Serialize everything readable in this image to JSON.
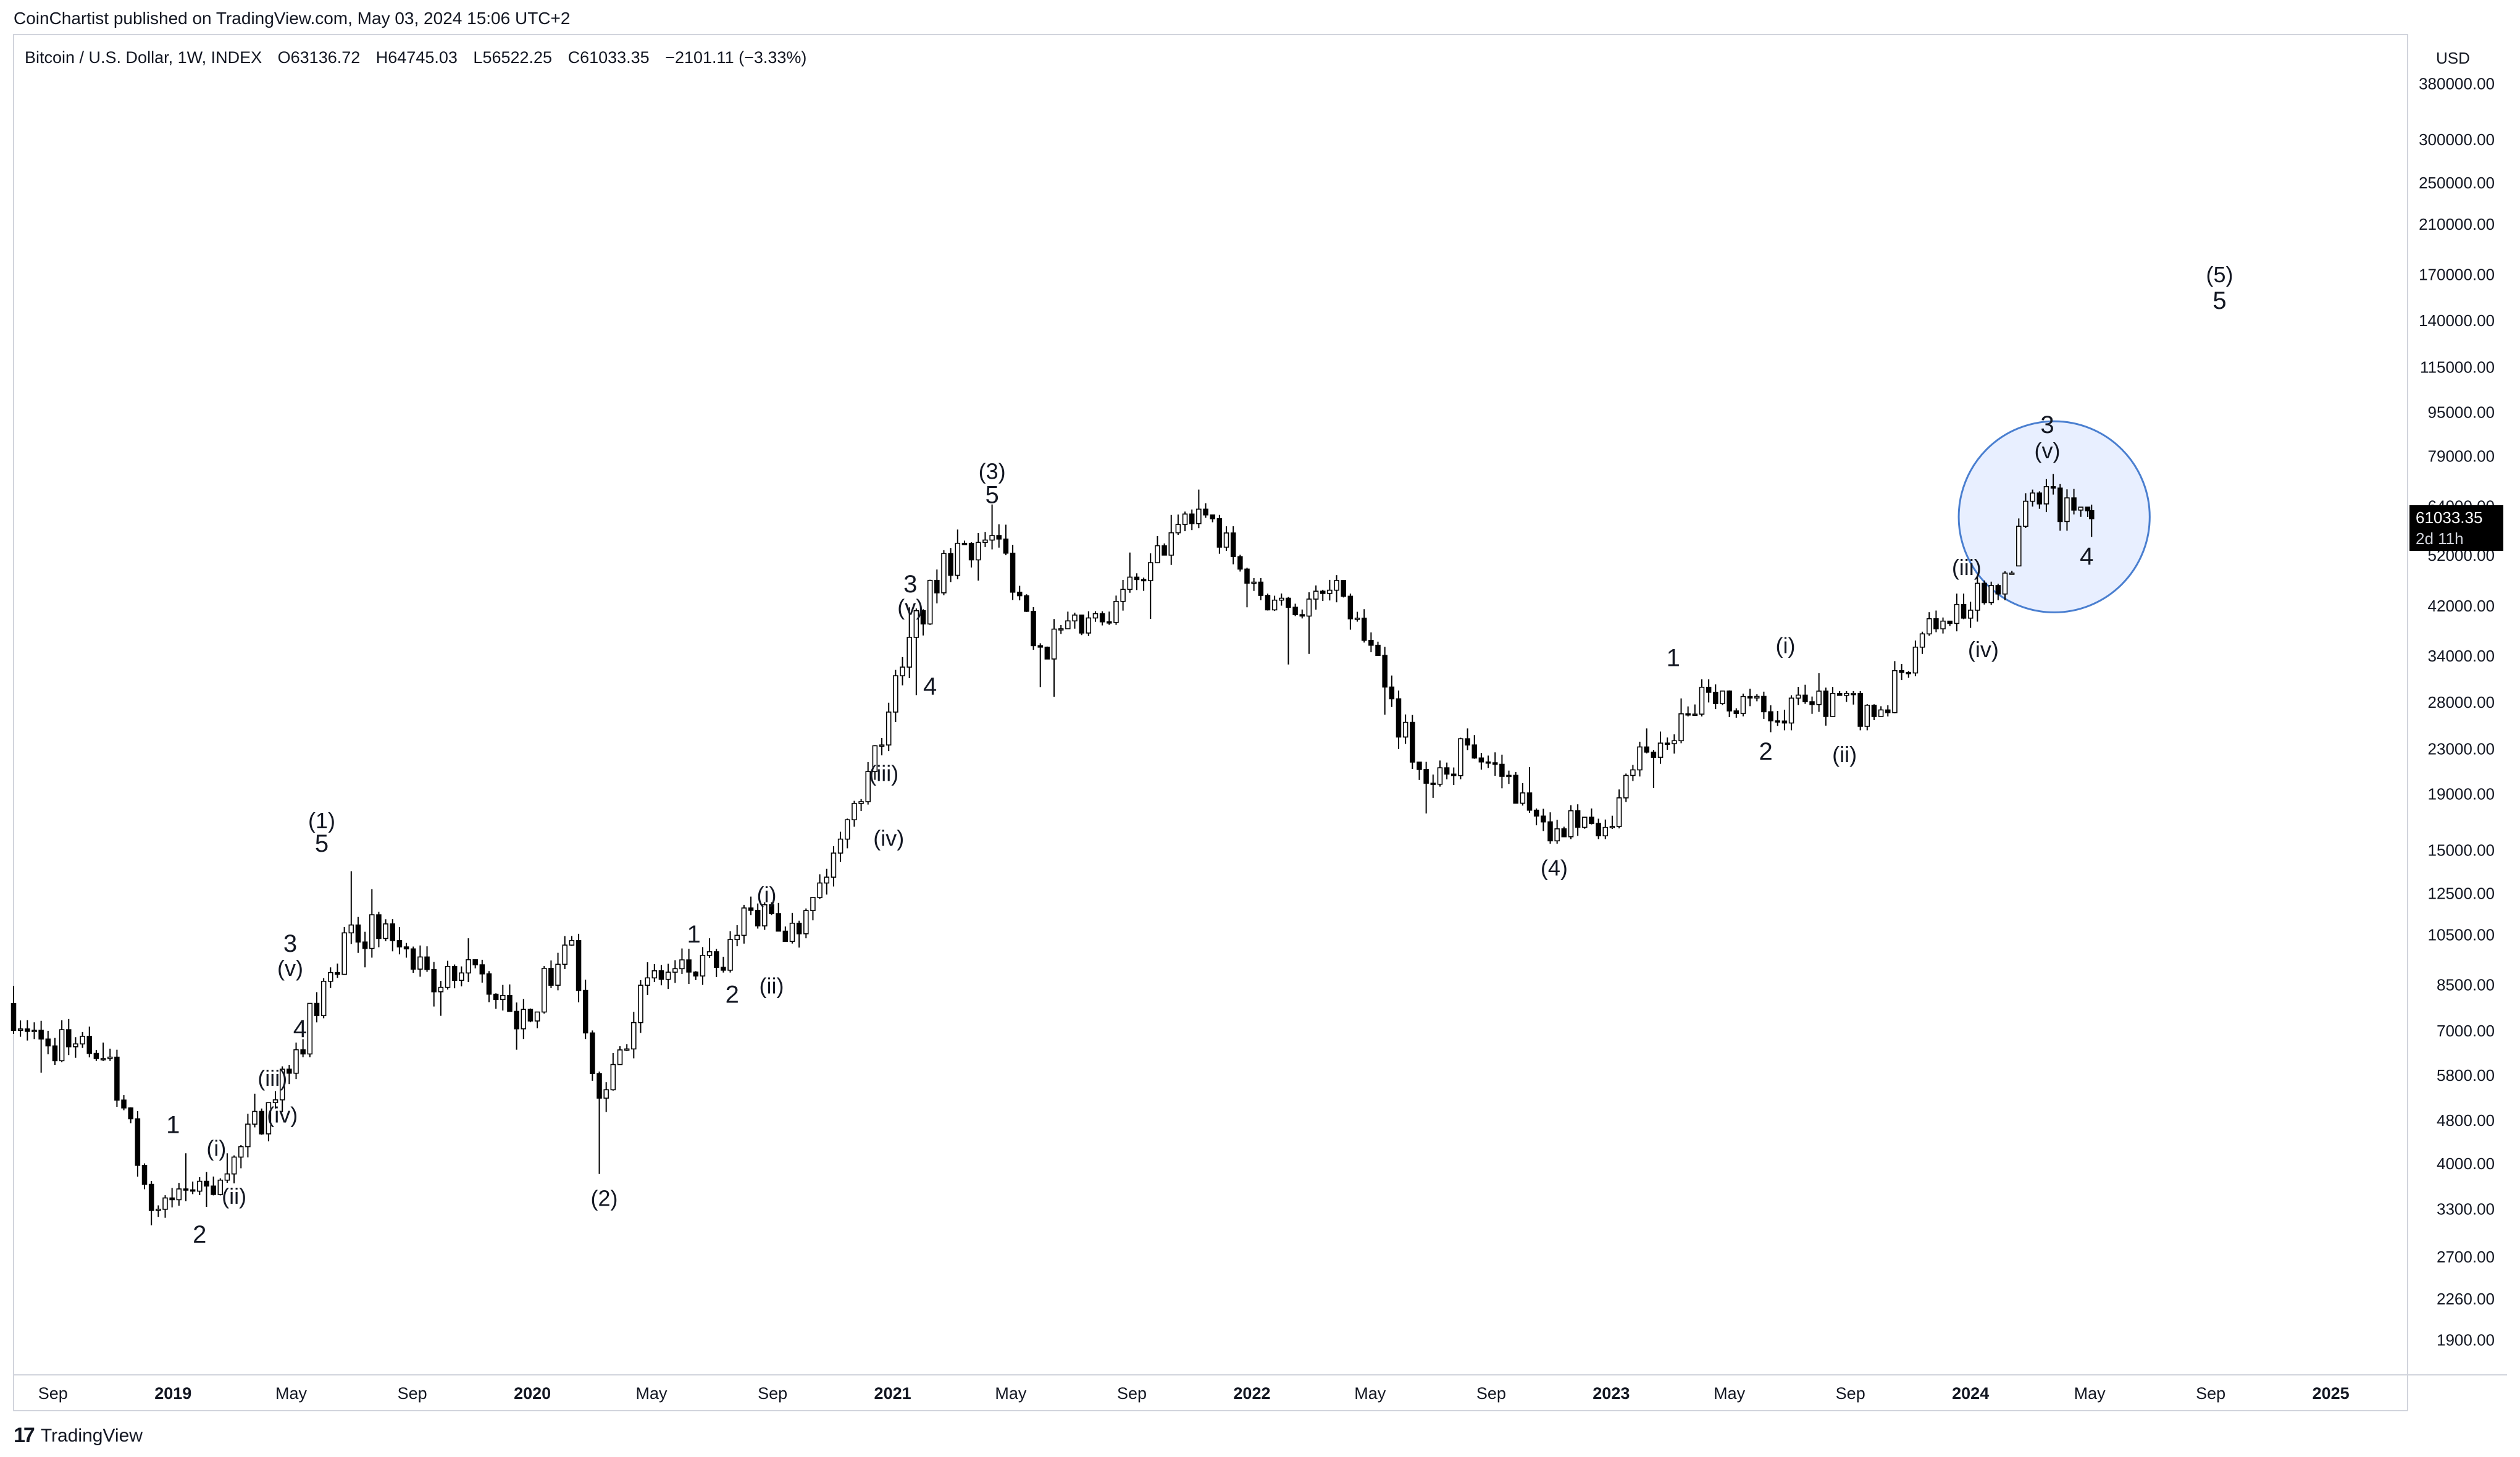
{
  "header": {
    "published_line": "CoinChartist published on TradingView.com, May 03, 2024 15:06 UTC+2"
  },
  "symbol": {
    "name": "Bitcoin / U.S. Dollar, 1W, INDEX",
    "open": "O63136.72",
    "high": "H64745.03",
    "low": "L56522.25",
    "close": "C61033.35",
    "change": "−2101.11 (−3.33%)"
  },
  "price_axis": {
    "currency": "USD",
    "ticks": [
      "380000.00",
      "300000.00",
      "250000.00",
      "210000.00",
      "170000.00",
      "140000.00",
      "115000.00",
      "95000.00",
      "79000.00",
      "64000.00",
      "52000.00",
      "42000.00",
      "34000.00",
      "28000.00",
      "23000.00",
      "19000.00",
      "15000.00",
      "12500.00",
      "10500.00",
      "8500.00",
      "7000.00",
      "5800.00",
      "4800.00",
      "4000.00",
      "3300.00",
      "2700.00",
      "2260.00",
      "1900.00"
    ]
  },
  "time_axis": {
    "ticks": [
      {
        "label": "Sep",
        "bold": false
      },
      {
        "label": "2019",
        "bold": true
      },
      {
        "label": "May",
        "bold": false
      },
      {
        "label": "Sep",
        "bold": false
      },
      {
        "label": "2020",
        "bold": true
      },
      {
        "label": "May",
        "bold": false
      },
      {
        "label": "Sep",
        "bold": false
      },
      {
        "label": "2021",
        "bold": true
      },
      {
        "label": "May",
        "bold": false
      },
      {
        "label": "Sep",
        "bold": false
      },
      {
        "label": "2022",
        "bold": true
      },
      {
        "label": "May",
        "bold": false
      },
      {
        "label": "Sep",
        "bold": false
      },
      {
        "label": "2023",
        "bold": true
      },
      {
        "label": "May",
        "bold": false
      },
      {
        "label": "Sep",
        "bold": false
      },
      {
        "label": "2024",
        "bold": true
      },
      {
        "label": "May",
        "bold": false
      },
      {
        "label": "Sep",
        "bold": false
      },
      {
        "label": "2025",
        "bold": true
      }
    ]
  },
  "last_price": {
    "price": "61033.35",
    "countdown": "2d 11h"
  },
  "footer": {
    "logo_mark": "17",
    "brand": "TradingView"
  },
  "colors": {
    "bull_fill": "#ffffff",
    "bear_fill": "#000000",
    "wick": "#000000",
    "highlight_fill": "#e8efff",
    "highlight_stroke": "#4a7fd0",
    "axis_text": "#131722"
  },
  "chart_data": {
    "type": "candlestick",
    "timeframe": "1W",
    "y_scale": "log",
    "ylim": [
      1650,
      470000
    ],
    "xlim": [
      "2018-07-23",
      "2025-03-20"
    ],
    "series": [
      {
        "weeks": 5,
        "start": [
          "2018-07-23",
          7900
        ],
        "end": [
          "2018-08-20",
          6800
        ],
        "low": 5900,
        "high": 8500
      },
      {
        "weeks": 7,
        "start": [
          "2018-08-27",
          6800
        ],
        "end": [
          "2018-10-08",
          6400
        ],
        "low": 6100,
        "high": 7400
      },
      {
        "weeks": 3,
        "start": [
          "2018-10-15",
          6400
        ],
        "end": [
          "2018-10-29",
          6300
        ],
        "low": 6200,
        "high": 6700
      },
      {
        "weeks": 6,
        "start": [
          "2018-11-05",
          6300
        ],
        "end": [
          "2018-12-10",
          3300
        ],
        "low": 3100,
        "high": 6500
      },
      {
        "weeks": 5,
        "start": [
          "2018-12-17",
          3300
        ],
        "end": [
          "2019-01-14",
          3600
        ],
        "low": 3200,
        "high": 4200
      },
      {
        "weeks": 6,
        "start": [
          "2019-01-21",
          3600
        ],
        "end": [
          "2019-02-25",
          3850
        ],
        "low": 3350,
        "high": 4200
      },
      {
        "weeks": 6,
        "start": [
          "2019-03-04",
          3850
        ],
        "end": [
          "2019-04-08",
          5200
        ],
        "low": 3700,
        "high": 5400
      },
      {
        "weeks": 4,
        "start": [
          "2019-04-15",
          5200
        ],
        "end": [
          "2019-05-06",
          6500
        ],
        "low": 5000,
        "high": 6700
      },
      {
        "weeks": 5,
        "start": [
          "2019-05-13",
          6500
        ],
        "end": [
          "2019-06-10",
          9000
        ],
        "low": 6300,
        "high": 9200
      },
      {
        "weeks": 3,
        "start": [
          "2019-06-17",
          9000
        ],
        "end": [
          "2019-07-01",
          11000
        ],
        "low": 8800,
        "high": 13800
      },
      {
        "weeks": 6,
        "start": [
          "2019-07-08",
          11000
        ],
        "end": [
          "2019-08-12",
          10300
        ],
        "low": 9200,
        "high": 12800
      },
      {
        "weeks": 6,
        "start": [
          "2019-08-19",
          10300
        ],
        "end": [
          "2019-09-23",
          8300
        ],
        "low": 7800,
        "high": 10900
      },
      {
        "weeks": 6,
        "start": [
          "2019-09-30",
          8300
        ],
        "end": [
          "2019-11-04",
          9300
        ],
        "low": 7500,
        "high": 10400
      },
      {
        "weeks": 6,
        "start": [
          "2019-11-11",
          9300
        ],
        "end": [
          "2019-12-16",
          7100
        ],
        "low": 6500,
        "high": 9500
      },
      {
        "weeks": 8,
        "start": [
          "2019-12-23",
          7100
        ],
        "end": [
          "2020-02-10",
          10300
        ],
        "low": 6800,
        "high": 10500
      },
      {
        "weeks": 4,
        "start": [
          "2020-02-17",
          10300
        ],
        "end": [
          "2020-03-09",
          5300
        ],
        "low": 3850,
        "high": 10600
      },
      {
        "weeks": 7,
        "start": [
          "2020-03-16",
          5300
        ],
        "end": [
          "2020-04-27",
          8800
        ],
        "low": 5000,
        "high": 9400
      },
      {
        "weeks": 10,
        "start": [
          "2020-05-04",
          8800
        ],
        "end": [
          "2020-07-06",
          9200
        ],
        "low": 8400,
        "high": 10400
      },
      {
        "weeks": 5,
        "start": [
          "2020-07-13",
          9200
        ],
        "end": [
          "2020-08-10",
          11700
        ],
        "low": 9000,
        "high": 12400
      },
      {
        "weeks": 7,
        "start": [
          "2020-08-17",
          11700
        ],
        "end": [
          "2020-09-28",
          10600
        ],
        "low": 10000,
        "high": 12100
      },
      {
        "weeks": 6,
        "start": [
          "2020-10-05",
          10600
        ],
        "end": [
          "2020-11-09",
          15800
        ],
        "low": 10400,
        "high": 16300
      },
      {
        "weeks": 6,
        "start": [
          "2020-11-16",
          15800
        ],
        "end": [
          "2020-12-21",
          23500
        ],
        "low": 15200,
        "high": 24200
      },
      {
        "weeks": 4,
        "start": [
          "2020-12-28",
          23500
        ],
        "end": [
          "2021-01-18",
          37000
        ],
        "low": 22900,
        "high": 42000
      },
      {
        "weeks": 7,
        "start": [
          "2021-01-25",
          37000
        ],
        "end": [
          "2021-03-08",
          55000
        ],
        "low": 29000,
        "high": 58300
      },
      {
        "weeks": 6,
        "start": [
          "2021-03-15",
          55000
        ],
        "end": [
          "2021-04-19",
          56000
        ],
        "low": 47000,
        "high": 64800
      },
      {
        "weeks": 6,
        "start": [
          "2021-04-26",
          56000
        ],
        "end": [
          "2021-05-31",
          35500
        ],
        "low": 30000,
        "high": 59500
      },
      {
        "weeks": 9,
        "start": [
          "2021-06-07",
          35500
        ],
        "end": [
          "2021-08-02",
          39500
        ],
        "low": 28800,
        "high": 41300
      },
      {
        "weeks": 6,
        "start": [
          "2021-08-09",
          39500
        ],
        "end": [
          "2021-09-13",
          47000
        ],
        "low": 39000,
        "high": 52900
      },
      {
        "weeks": 4,
        "start": [
          "2021-09-20",
          47000
        ],
        "end": [
          "2021-10-11",
          57500
        ],
        "low": 40000,
        "high": 62000
      },
      {
        "weeks": 5,
        "start": [
          "2021-10-18",
          57500
        ],
        "end": [
          "2021-11-15",
          62000
        ],
        "low": 57000,
        "high": 69000
      },
      {
        "weeks": 6,
        "start": [
          "2021-11-22",
          62000
        ],
        "end": [
          "2021-12-27",
          46500
        ],
        "low": 42000,
        "high": 62000
      },
      {
        "weeks": 6,
        "start": [
          "2022-01-03",
          46500
        ],
        "end": [
          "2022-02-07",
          42000
        ],
        "low": 33000,
        "high": 47500
      },
      {
        "weeks": 8,
        "start": [
          "2022-02-14",
          42000
        ],
        "end": [
          "2022-04-04",
          44000
        ],
        "low": 34500,
        "high": 48100
      },
      {
        "weeks": 6,
        "start": [
          "2022-04-11",
          44000
        ],
        "end": [
          "2022-05-16",
          30000
        ],
        "low": 26700,
        "high": 44500
      },
      {
        "weeks": 6,
        "start": [
          "2022-05-23",
          30000
        ],
        "end": [
          "2022-06-27",
          20000
        ],
        "low": 17600,
        "high": 31500
      },
      {
        "weeks": 6,
        "start": [
          "2022-07-04",
          20000
        ],
        "end": [
          "2022-08-08",
          23500
        ],
        "low": 18800,
        "high": 25200
      },
      {
        "weeks": 8,
        "start": [
          "2022-08-15",
          23500
        ],
        "end": [
          "2022-10-03",
          19200
        ],
        "low": 18200,
        "high": 24500
      },
      {
        "weeks": 5,
        "start": [
          "2022-10-10",
          19200
        ],
        "end": [
          "2022-11-07",
          16500
        ],
        "low": 15500,
        "high": 21400
      },
      {
        "weeks": 7,
        "start": [
          "2022-11-14",
          16500
        ],
        "end": [
          "2022-12-26",
          16600
        ],
        "low": 15800,
        "high": 18300
      },
      {
        "weeks": 6,
        "start": [
          "2023-01-02",
          16600
        ],
        "end": [
          "2023-02-06",
          22800
        ],
        "low": 16500,
        "high": 25200
      },
      {
        "weeks": 5,
        "start": [
          "2023-02-13",
          22800
        ],
        "end": [
          "2023-03-13",
          26800
        ],
        "low": 19600,
        "high": 28600
      },
      {
        "weeks": 6,
        "start": [
          "2023-03-20",
          26800
        ],
        "end": [
          "2023-04-24",
          29500
        ],
        "low": 26500,
        "high": 31000
      },
      {
        "weeks": 8,
        "start": [
          "2023-05-01",
          29500
        ],
        "end": [
          "2023-06-19",
          26000
        ],
        "low": 24800,
        "high": 29800
      },
      {
        "weeks": 8,
        "start": [
          "2023-06-26",
          26000
        ],
        "end": [
          "2023-08-14",
          29200
        ],
        "low": 25000,
        "high": 31800
      },
      {
        "weeks": 6,
        "start": [
          "2023-08-21",
          29200
        ],
        "end": [
          "2023-09-25",
          26500
        ],
        "low": 25000,
        "high": 29500
      },
      {
        "weeks": 6,
        "start": [
          "2023-10-02",
          26500
        ],
        "end": [
          "2023-11-06",
          35500
        ],
        "low": 26500,
        "high": 36500
      },
      {
        "weeks": 6,
        "start": [
          "2023-11-13",
          35500
        ],
        "end": [
          "2023-12-18",
          42500
        ],
        "low": 34500,
        "high": 44500
      },
      {
        "weeks": 8,
        "start": [
          "2023-12-25",
          42500
        ],
        "end": [
          "2024-02-12",
          50000
        ],
        "low": 38500,
        "high": 49000
      },
      {
        "weeks": 3,
        "start": [
          "2024-02-19",
          50000
        ],
        "end": [
          "2024-03-04",
          68000
        ],
        "low": 50500,
        "high": 69000
      },
      {
        "weeks": 8,
        "start": [
          "2024-03-11",
          68000
        ],
        "end": [
          "2024-04-29",
          63100
        ],
        "low": 58000,
        "high": 73700
      }
    ],
    "last_candle": {
      "date": "2024-05-03",
      "open": 63136.72,
      "high": 64745.03,
      "low": 56522.25,
      "close": 61033.35
    },
    "annotations": [
      {
        "text": "1",
        "date": "2019-01-01",
        "price": 4700
      },
      {
        "text": "2",
        "date": "2019-01-28",
        "price": 2960
      },
      {
        "text": "(i)",
        "date": "2019-02-14",
        "price": 4260
      },
      {
        "text": "(ii)",
        "date": "2019-03-04",
        "price": 3480
      },
      {
        "text": "(iii)",
        "date": "2019-04-12",
        "price": 5720
      },
      {
        "text": "(iv)",
        "date": "2019-04-22",
        "price": 4900
      },
      {
        "text": "3",
        "date": "2019-04-30",
        "price": 10100
      },
      {
        "text": "(v)",
        "date": "2019-04-30",
        "price": 9100
      },
      {
        "text": "4",
        "date": "2019-05-10",
        "price": 7050
      },
      {
        "text": "(1)",
        "date": "2019-06-01",
        "price": 16950
      },
      {
        "text": "5",
        "date": "2019-06-01",
        "price": 15400
      },
      {
        "text": "(2)",
        "date": "2020-03-14",
        "price": 3450
      },
      {
        "text": "1",
        "date": "2020-06-13",
        "price": 10500
      },
      {
        "text": "2",
        "date": "2020-07-22",
        "price": 8150
      },
      {
        "text": "(i)",
        "date": "2020-08-26",
        "price": 12400
      },
      {
        "text": "(ii)",
        "date": "2020-08-31",
        "price": 8450
      },
      {
        "text": "(iii)",
        "date": "2020-12-23",
        "price": 20700
      },
      {
        "text": "(iv)",
        "date": "2020-12-28",
        "price": 15750
      },
      {
        "text": "3",
        "date": "2021-01-19",
        "price": 46000
      },
      {
        "text": "(v)",
        "date": "2021-01-19",
        "price": 41700
      },
      {
        "text": "4",
        "date": "2021-02-08",
        "price": 29900
      },
      {
        "text": "(3)",
        "date": "2021-04-12",
        "price": 74000
      },
      {
        "text": "5",
        "date": "2021-04-12",
        "price": 67000
      },
      {
        "text": "(4)",
        "date": "2022-11-04",
        "price": 13900
      },
      {
        "text": "1",
        "date": "2023-03-05",
        "price": 33700
      },
      {
        "text": "2",
        "date": "2023-06-07",
        "price": 22700
      },
      {
        "text": "(i)",
        "date": "2023-06-27",
        "price": 35500
      },
      {
        "text": "(ii)",
        "date": "2023-08-26",
        "price": 22400
      },
      {
        "text": "(iii)",
        "date": "2023-12-28",
        "price": 49300
      },
      {
        "text": "(iv)",
        "date": "2024-01-14",
        "price": 34900
      },
      {
        "text": "3",
        "date": "2024-03-19",
        "price": 90000
      },
      {
        "text": "(v)",
        "date": "2024-03-19",
        "price": 80700
      },
      {
        "text": "4",
        "date": "2024-04-28",
        "price": 51700
      },
      {
        "text": "(5)",
        "date": "2024-09-10",
        "price": 169500
      },
      {
        "text": "5",
        "date": "2024-09-10",
        "price": 152000
      }
    ],
    "highlight_circle": {
      "center_date": "2024-03-26",
      "center_price": 61500,
      "radius_days": 97
    }
  }
}
